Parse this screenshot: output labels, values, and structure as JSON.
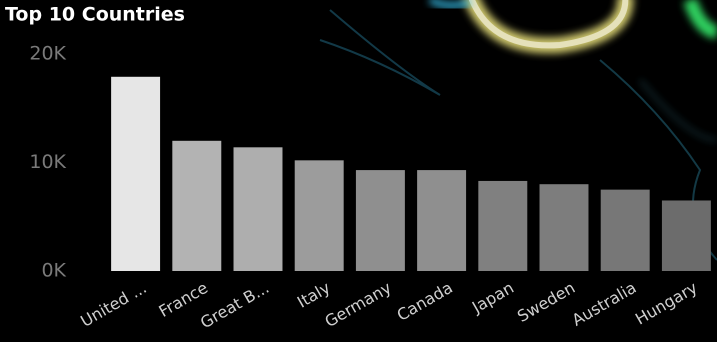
{
  "chart_data": {
    "type": "bar",
    "title": "Top 10 Countries",
    "categories": [
      "United ...",
      "France",
      "Great B...",
      "Italy",
      "Germany",
      "Canada",
      "Japan",
      "Sweden",
      "Australia",
      "Hungary"
    ],
    "values": [
      17900,
      12000,
      11400,
      10200,
      9300,
      9300,
      8300,
      8000,
      7500,
      6500
    ],
    "colors": [
      "#e6e6e6",
      "#b3b3b3",
      "#aeaeae",
      "#9c9c9c",
      "#8f8f8f",
      "#8f8f8f",
      "#808080",
      "#7d7d7d",
      "#777777",
      "#6c6c6c"
    ],
    "ylim": [
      0,
      20000
    ],
    "yticks": [
      {
        "value": 0,
        "label": "0K"
      },
      {
        "value": 10000,
        "label": "10K"
      },
      {
        "value": 20000,
        "label": "20K"
      }
    ],
    "grid": false
  }
}
